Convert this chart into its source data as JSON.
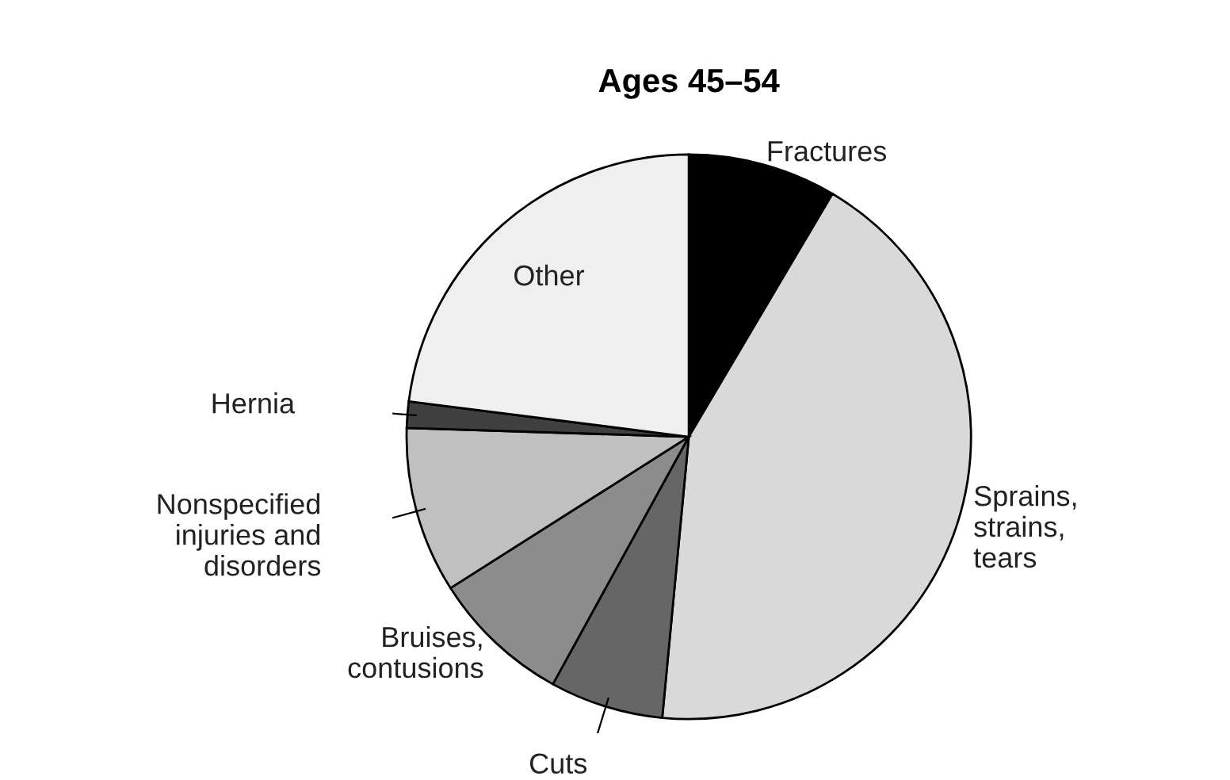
{
  "chart_data": {
    "type": "pie",
    "title": "Ages 45–54",
    "categories": [
      "Fractures",
      "Sprains,\nstrains,\ntears",
      "Cuts",
      "Bruises,\ncontusions",
      "Nonspecified\ninjuries and\ndisorders",
      "Hernia",
      "Other"
    ],
    "values": [
      8.5,
      43,
      6.5,
      8,
      9.5,
      1.5,
      23
    ],
    "colors": [
      "#000000",
      "#d9d9d9",
      "#666666",
      "#8c8c8c",
      "#c0c0c0",
      "#404040",
      "#efefef"
    ]
  }
}
